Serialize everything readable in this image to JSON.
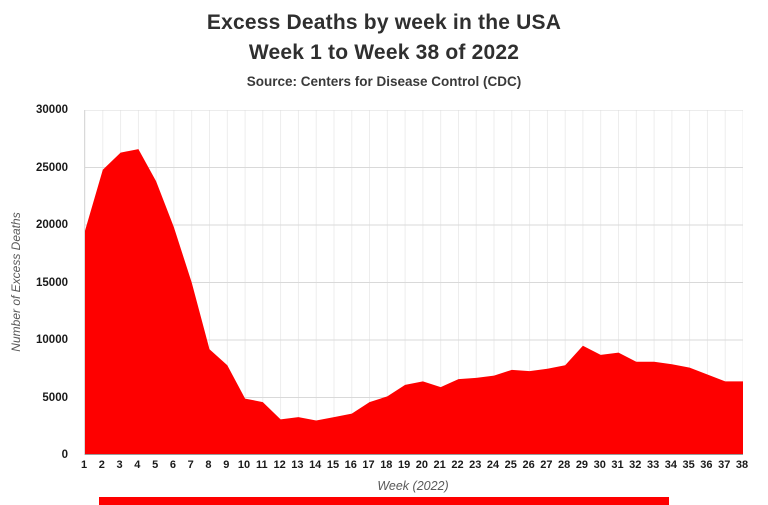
{
  "page": {
    "title_line1": "Excess Deaths by week in the USA",
    "title_line2": "Week 1 to Week 38 of 2022",
    "subtitle": "Source: Centers for Disease Control (CDC)"
  },
  "chart_data": {
    "type": "area",
    "title": "Excess Deaths by week in the USA, Week 1 to Week 38 of 2022",
    "subtitle": "Source: Centers for Disease Control (CDC)",
    "xlabel": "Week (2022)",
    "ylabel": "Number of Excess Deaths",
    "ylim": [
      0,
      30000
    ],
    "ytick_step": 5000,
    "yticks": [
      0,
      5000,
      10000,
      15000,
      20000,
      25000,
      30000
    ],
    "grid": true,
    "legend": "none",
    "categories": [
      "1",
      "2",
      "3",
      "4",
      "5",
      "6",
      "7",
      "8",
      "9",
      "10",
      "11",
      "12",
      "13",
      "14",
      "15",
      "16",
      "17",
      "18",
      "19",
      "20",
      "21",
      "22",
      "23",
      "24",
      "25",
      "26",
      "27",
      "28",
      "29",
      "30",
      "31",
      "32",
      "33",
      "34",
      "35",
      "36",
      "37",
      "38"
    ],
    "values": [
      19500,
      24800,
      26300,
      26600,
      23800,
      19800,
      15000,
      9200,
      7800,
      4900,
      4600,
      3100,
      3300,
      3000,
      3300,
      3600,
      4600,
      5100,
      6100,
      6400,
      5900,
      6600,
      6700,
      6900,
      7400,
      7300,
      7500,
      7800,
      9500,
      8700,
      8900,
      8100,
      8100,
      7900,
      7600,
      7000,
      6400,
      6400
    ],
    "series_name": "Excess Deaths",
    "fill_color": "#fe0000"
  },
  "colors": {
    "area_fill": "#fe0000",
    "gridline_h": "#d9d9d9",
    "gridline_v": "#ededed",
    "axis_line": "#9c9c9c",
    "tick_text": "#1a1a1a",
    "axis_title_text": "#595959",
    "title_text": "#2f2f2f",
    "background": "#ffffff"
  }
}
